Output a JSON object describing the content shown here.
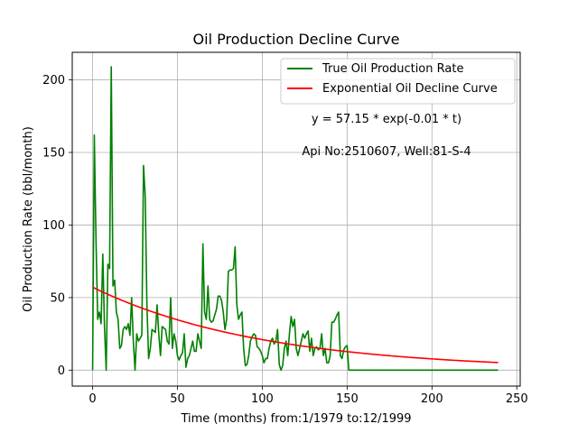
{
  "chart_data": {
    "type": "line",
    "title": "Oil Production Decline Curve",
    "xlabel": "Time (months) from:1/1979 to:12/1999",
    "ylabel": "Oil Production Rate (bbl/month)",
    "xlim": [
      -12,
      252
    ],
    "ylim": [
      -11,
      219
    ],
    "xticks": [
      0,
      50,
      100,
      150,
      200,
      250
    ],
    "yticks": [
      0,
      50,
      100,
      150,
      200
    ],
    "grid": true,
    "legend_position": "top-right",
    "annotations": [
      "y = 57.15 * exp(-0.01 * t)",
      "Api No:2510607, Well:81-S-4"
    ],
    "series": [
      {
        "name": "True Oil Production Rate",
        "color": "#008000",
        "points": [
          [
            0,
            0
          ],
          [
            1,
            162
          ],
          [
            2,
            90
          ],
          [
            3,
            35
          ],
          [
            4,
            40
          ],
          [
            5,
            32
          ],
          [
            6,
            80
          ],
          [
            7,
            30
          ],
          [
            8,
            0
          ],
          [
            9,
            73
          ],
          [
            10,
            70
          ],
          [
            11,
            209
          ],
          [
            12,
            58
          ],
          [
            13,
            62
          ],
          [
            14,
            40
          ],
          [
            15,
            35
          ],
          [
            16,
            15
          ],
          [
            17,
            17
          ],
          [
            18,
            28
          ],
          [
            19,
            30
          ],
          [
            20,
            28
          ],
          [
            21,
            32
          ],
          [
            22,
            24
          ],
          [
            23,
            50
          ],
          [
            24,
            20
          ],
          [
            25,
            0
          ],
          [
            26,
            25
          ],
          [
            27,
            20
          ],
          [
            28,
            22
          ],
          [
            29,
            24
          ],
          [
            30,
            141
          ],
          [
            31,
            120
          ],
          [
            32,
            45
          ],
          [
            33,
            8
          ],
          [
            34,
            15
          ],
          [
            35,
            28
          ],
          [
            36,
            27
          ],
          [
            37,
            26
          ],
          [
            38,
            45
          ],
          [
            39,
            25
          ],
          [
            40,
            10
          ],
          [
            41,
            30
          ],
          [
            42,
            29
          ],
          [
            43,
            28
          ],
          [
            44,
            20
          ],
          [
            45,
            18
          ],
          [
            46,
            50
          ],
          [
            47,
            15
          ],
          [
            48,
            25
          ],
          [
            49,
            20
          ],
          [
            50,
            10
          ],
          [
            51,
            7
          ],
          [
            52,
            10
          ],
          [
            53,
            12
          ],
          [
            54,
            25
          ],
          [
            55,
            2
          ],
          [
            56,
            8
          ],
          [
            57,
            10
          ],
          [
            58,
            15
          ],
          [
            59,
            20
          ],
          [
            60,
            13
          ],
          [
            61,
            13
          ],
          [
            62,
            25
          ],
          [
            63,
            20
          ],
          [
            64,
            15
          ],
          [
            65,
            87
          ],
          [
            66,
            40
          ],
          [
            67,
            35
          ],
          [
            68,
            58
          ],
          [
            69,
            35
          ],
          [
            70,
            33
          ],
          [
            71,
            34
          ],
          [
            72,
            38
          ],
          [
            73,
            42
          ],
          [
            74,
            51
          ],
          [
            75,
            51
          ],
          [
            76,
            48
          ],
          [
            77,
            40
          ],
          [
            78,
            28
          ],
          [
            79,
            35
          ],
          [
            80,
            68
          ],
          [
            81,
            69
          ],
          [
            82,
            69
          ],
          [
            83,
            70
          ],
          [
            84,
            85
          ],
          [
            85,
            45
          ],
          [
            86,
            35
          ],
          [
            87,
            38
          ],
          [
            88,
            40
          ],
          [
            89,
            15
          ],
          [
            90,
            3
          ],
          [
            91,
            4
          ],
          [
            92,
            10
          ],
          [
            93,
            20
          ],
          [
            94,
            23
          ],
          [
            95,
            25
          ],
          [
            96,
            24
          ],
          [
            97,
            16
          ],
          [
            98,
            15
          ],
          [
            99,
            13
          ],
          [
            100,
            10
          ],
          [
            101,
            5
          ],
          [
            102,
            8
          ],
          [
            103,
            8
          ],
          [
            104,
            15
          ],
          [
            105,
            20
          ],
          [
            106,
            22
          ],
          [
            107,
            18
          ],
          [
            108,
            20
          ],
          [
            109,
            28
          ],
          [
            110,
            4
          ],
          [
            111,
            0
          ],
          [
            112,
            3
          ],
          [
            113,
            15
          ],
          [
            114,
            20
          ],
          [
            115,
            10
          ],
          [
            116,
            25
          ],
          [
            117,
            37
          ],
          [
            118,
            30
          ],
          [
            119,
            35
          ],
          [
            120,
            15
          ],
          [
            121,
            10
          ],
          [
            122,
            15
          ],
          [
            123,
            20
          ],
          [
            124,
            25
          ],
          [
            125,
            22
          ],
          [
            126,
            25
          ],
          [
            127,
            27
          ],
          [
            128,
            13
          ],
          [
            129,
            22
          ],
          [
            130,
            10
          ],
          [
            131,
            15
          ],
          [
            132,
            16
          ],
          [
            133,
            14
          ],
          [
            134,
            15
          ],
          [
            135,
            25
          ],
          [
            136,
            10
          ],
          [
            137,
            15
          ],
          [
            138,
            5
          ],
          [
            139,
            5
          ],
          [
            140,
            10
          ],
          [
            141,
            33
          ],
          [
            142,
            33
          ],
          [
            143,
            35
          ],
          [
            144,
            38
          ],
          [
            145,
            40
          ],
          [
            146,
            10
          ],
          [
            147,
            8
          ],
          [
            148,
            14
          ],
          [
            149,
            16
          ],
          [
            150,
            17
          ],
          [
            151,
            0
          ],
          [
            160,
            0
          ],
          [
            170,
            0
          ],
          [
            180,
            0
          ],
          [
            190,
            0
          ],
          [
            200,
            0
          ],
          [
            210,
            0
          ],
          [
            220,
            0
          ],
          [
            230,
            0
          ],
          [
            239,
            0
          ]
        ]
      },
      {
        "name": "Exponential Oil Decline Curve",
        "color": "#ff0000",
        "equation": {
          "a": 57.15,
          "b": -0.01
        },
        "x_range": [
          0,
          239
        ]
      }
    ]
  }
}
